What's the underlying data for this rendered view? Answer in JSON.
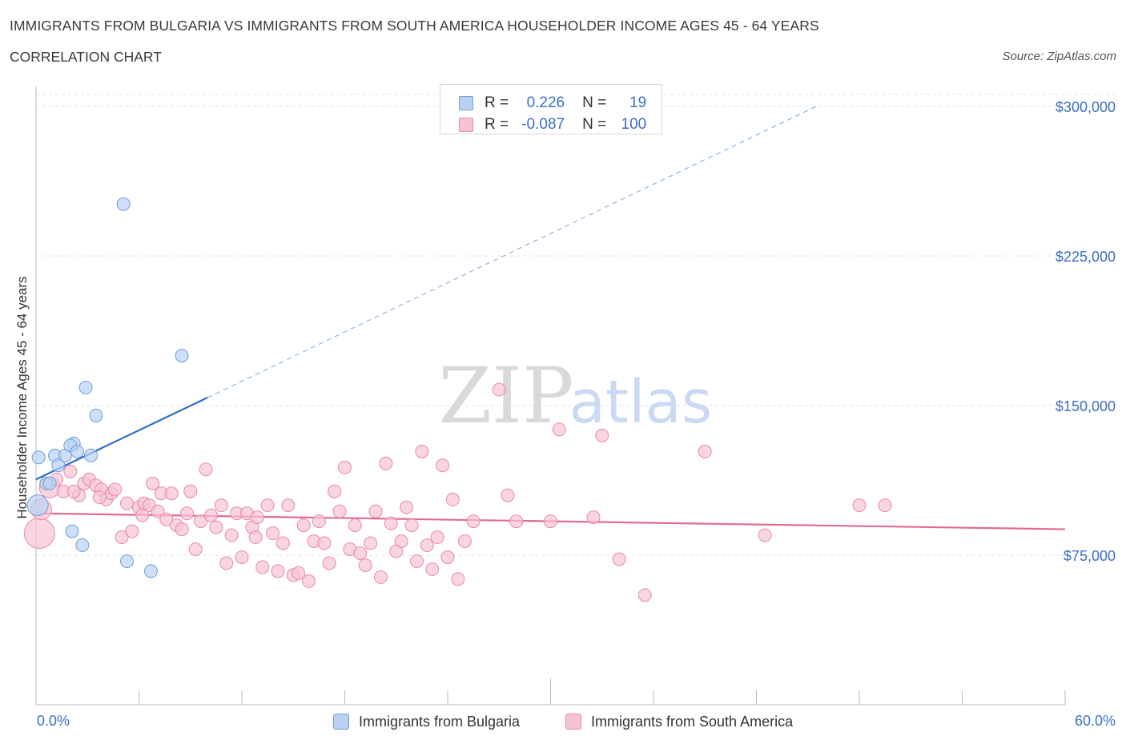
{
  "header": {
    "title": "IMMIGRANTS FROM BULGARIA VS IMMIGRANTS FROM SOUTH AMERICA HOUSEHOLDER INCOME AGES 45 - 64 YEARS",
    "subtitle": "CORRELATION CHART",
    "source": "Source: ZipAtlas.com"
  },
  "watermark": {
    "zip": "ZIP",
    "atlas": "atlas"
  },
  "colors": {
    "bulgaria_fill": "#b9d2f3",
    "bulgaria_stroke": "#6f9fd8",
    "bulgaria_line": "#2f6dc4",
    "sa_fill": "#f7c3d3",
    "sa_stroke": "#e88aa8",
    "sa_line": "#e06b95",
    "tick_label": "#3d6fc4",
    "grid": "#e2e2e2"
  },
  "legend": {
    "rows": [
      {
        "r_label": "R =",
        "r_value": "0.226",
        "n_label": "N =",
        "n_value": "19"
      },
      {
        "r_label": "R =",
        "r_value": "-0.087",
        "n_label": "N =",
        "n_value": "100"
      }
    ]
  },
  "bottom_legend": [
    "Immigrants from Bulgaria",
    "Immigrants from South America"
  ],
  "chart_data": {
    "type": "scatter",
    "title": "IMMIGRANTS FROM BULGARIA VS IMMIGRANTS FROM SOUTH AMERICA HOUSEHOLDER INCOME AGES 45 - 64 YEARS",
    "xlabel": "",
    "ylabel": "Householder Income Ages 45 - 64 years",
    "xlim": [
      0,
      60
    ],
    "ylim": [
      0,
      310000
    ],
    "x_tick_labels": [
      "0.0%",
      "60.0%"
    ],
    "y_ticks": [
      75000,
      150000,
      225000,
      300000
    ],
    "y_tick_labels": [
      "$75,000",
      "$150,000",
      "$225,000",
      "$300,000"
    ],
    "grid": true,
    "legend_position": "top-center",
    "series": [
      {
        "name": "Immigrants from Bulgaria",
        "R": 0.226,
        "N": 19,
        "trend": {
          "x": [
            0,
            10
          ],
          "y": [
            113000,
            154000
          ],
          "extended_to": [
            45.5,
            300000
          ]
        },
        "points": [
          [
            0.1,
            100000,
            "lg"
          ],
          [
            0.15,
            124000
          ],
          [
            0.6,
            111000
          ],
          [
            1.1,
            125000
          ],
          [
            1.3,
            120000
          ],
          [
            1.7,
            125000
          ],
          [
            2.2,
            131000
          ],
          [
            2.0,
            130000
          ],
          [
            2.4,
            127000
          ],
          [
            3.2,
            125000
          ],
          [
            2.9,
            159000
          ],
          [
            3.5,
            145000
          ],
          [
            5.1,
            251000
          ],
          [
            8.5,
            175000
          ],
          [
            2.1,
            87000
          ],
          [
            2.7,
            80000
          ],
          [
            5.3,
            72000
          ],
          [
            6.7,
            67000
          ],
          [
            0.8,
            111000
          ]
        ]
      },
      {
        "name": "Immigrants from South America",
        "R": -0.087,
        "N": 100,
        "trend": {
          "x": [
            0,
            60
          ],
          "y": [
            96000,
            88000
          ]
        },
        "points": [
          [
            0.2,
            86000,
            "xl"
          ],
          [
            0.3,
            98000,
            "lg"
          ],
          [
            0.8,
            109000,
            "lg"
          ],
          [
            1.2,
            113000
          ],
          [
            1.6,
            107000
          ],
          [
            2.0,
            117000
          ],
          [
            2.5,
            105000
          ],
          [
            2.8,
            111000
          ],
          [
            3.1,
            113000
          ],
          [
            3.5,
            110000
          ],
          [
            3.8,
            108000
          ],
          [
            4.1,
            103000
          ],
          [
            4.4,
            106000
          ],
          [
            4.6,
            108000
          ],
          [
            5.0,
            84000
          ],
          [
            5.3,
            101000
          ],
          [
            5.6,
            87000
          ],
          [
            6.0,
            99000
          ],
          [
            6.3,
            101000
          ],
          [
            6.6,
            100000
          ],
          [
            6.8,
            111000
          ],
          [
            7.1,
            97000
          ],
          [
            7.3,
            106000
          ],
          [
            7.6,
            93000
          ],
          [
            7.9,
            106000
          ],
          [
            8.2,
            90000
          ],
          [
            8.5,
            88000
          ],
          [
            8.8,
            96000
          ],
          [
            9.0,
            107000
          ],
          [
            9.3,
            78000
          ],
          [
            9.6,
            92000
          ],
          [
            9.9,
            118000
          ],
          [
            10.2,
            95000
          ],
          [
            10.5,
            89000
          ],
          [
            10.8,
            100000
          ],
          [
            11.1,
            71000
          ],
          [
            11.4,
            85000
          ],
          [
            11.7,
            96000
          ],
          [
            12.0,
            74000
          ],
          [
            12.3,
            96000
          ],
          [
            12.6,
            89000
          ],
          [
            12.9,
            94000
          ],
          [
            13.2,
            69000
          ],
          [
            13.5,
            100000
          ],
          [
            13.8,
            86000
          ],
          [
            14.1,
            67000
          ],
          [
            14.4,
            81000
          ],
          [
            14.7,
            100000
          ],
          [
            15.0,
            65000
          ],
          [
            15.3,
            66000
          ],
          [
            15.6,
            90000
          ],
          [
            15.9,
            62000
          ],
          [
            16.2,
            82000
          ],
          [
            16.5,
            92000
          ],
          [
            16.8,
            81000
          ],
          [
            17.1,
            71000
          ],
          [
            17.4,
            107000
          ],
          [
            17.7,
            97000
          ],
          [
            18.0,
            119000
          ],
          [
            18.3,
            78000
          ],
          [
            18.6,
            90000
          ],
          [
            18.9,
            76000
          ],
          [
            19.2,
            70000
          ],
          [
            19.5,
            81000
          ],
          [
            19.8,
            97000
          ],
          [
            20.1,
            64000
          ],
          [
            20.4,
            121000
          ],
          [
            20.7,
            91000
          ],
          [
            21.0,
            77000
          ],
          [
            21.3,
            82000
          ],
          [
            21.6,
            99000
          ],
          [
            21.9,
            90000
          ],
          [
            22.2,
            72000
          ],
          [
            22.5,
            127000
          ],
          [
            22.8,
            80000
          ],
          [
            23.1,
            68000
          ],
          [
            23.4,
            84000
          ],
          [
            23.7,
            120000
          ],
          [
            24.0,
            74000
          ],
          [
            24.3,
            103000
          ],
          [
            24.6,
            63000
          ],
          [
            25.0,
            82000
          ],
          [
            25.5,
            92000
          ],
          [
            27.0,
            158000
          ],
          [
            27.5,
            105000
          ],
          [
            28.0,
            92000
          ],
          [
            30.0,
            92000
          ],
          [
            30.5,
            138000
          ],
          [
            32.5,
            94000
          ],
          [
            33.0,
            135000
          ],
          [
            34.0,
            73000
          ],
          [
            35.5,
            55000
          ],
          [
            39.0,
            127000
          ],
          [
            42.5,
            85000
          ],
          [
            49.5,
            100000
          ],
          [
            48.0,
            100000
          ],
          [
            2.2,
            107000
          ],
          [
            3.7,
            104000
          ],
          [
            6.2,
            95000
          ],
          [
            12.8,
            84000
          ]
        ]
      }
    ]
  }
}
